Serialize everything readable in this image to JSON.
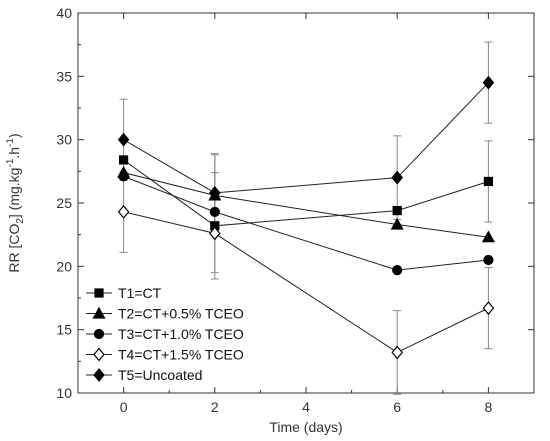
{
  "chart_data": {
    "type": "line",
    "xlabel": "Time (days)",
    "ylabel_parts": [
      "RR [CO",
      "2",
      "] (mg.kg",
      "-1",
      ".h",
      "-1",
      ")"
    ],
    "xlim": [
      -1,
      9
    ],
    "ylim": [
      10,
      40
    ],
    "xticks": [
      0,
      2,
      4,
      6,
      8
    ],
    "yticks": [
      10,
      15,
      20,
      25,
      30,
      35,
      40
    ],
    "x": [
      0,
      2,
      6,
      8
    ],
    "legend_position": "bottom-left",
    "series": [
      {
        "name": "T1=CT",
        "marker": "square",
        "filled": true,
        "values": [
          28.4,
          23.2,
          24.4,
          26.7
        ],
        "errors": [
          0,
          4.2,
          0,
          3.2
        ]
      },
      {
        "name": "T2=CT+0.5% TCEO",
        "marker": "triangle",
        "filled": true,
        "values": [
          27.4,
          25.6,
          23.3,
          22.3
        ],
        "errors": [
          0,
          3.2,
          0,
          0
        ]
      },
      {
        "name": "T3=CT+1.0% TCEO",
        "marker": "circle",
        "filled": true,
        "values": [
          27.1,
          24.3,
          19.7,
          20.5
        ],
        "errors": [
          0,
          0,
          0,
          0
        ]
      },
      {
        "name": "T4=CT+1.5% TCEO",
        "marker": "diamond",
        "filled": false,
        "values": [
          24.3,
          22.6,
          13.2,
          16.7
        ],
        "errors": [
          3.2,
          3.1,
          3.3,
          3.2
        ]
      },
      {
        "name": "T5=Uncoated",
        "marker": "diamond",
        "filled": true,
        "values": [
          30.0,
          25.8,
          27.0,
          34.5
        ],
        "errors": [
          3.2,
          3.1,
          3.3,
          3.2
        ]
      }
    ]
  }
}
